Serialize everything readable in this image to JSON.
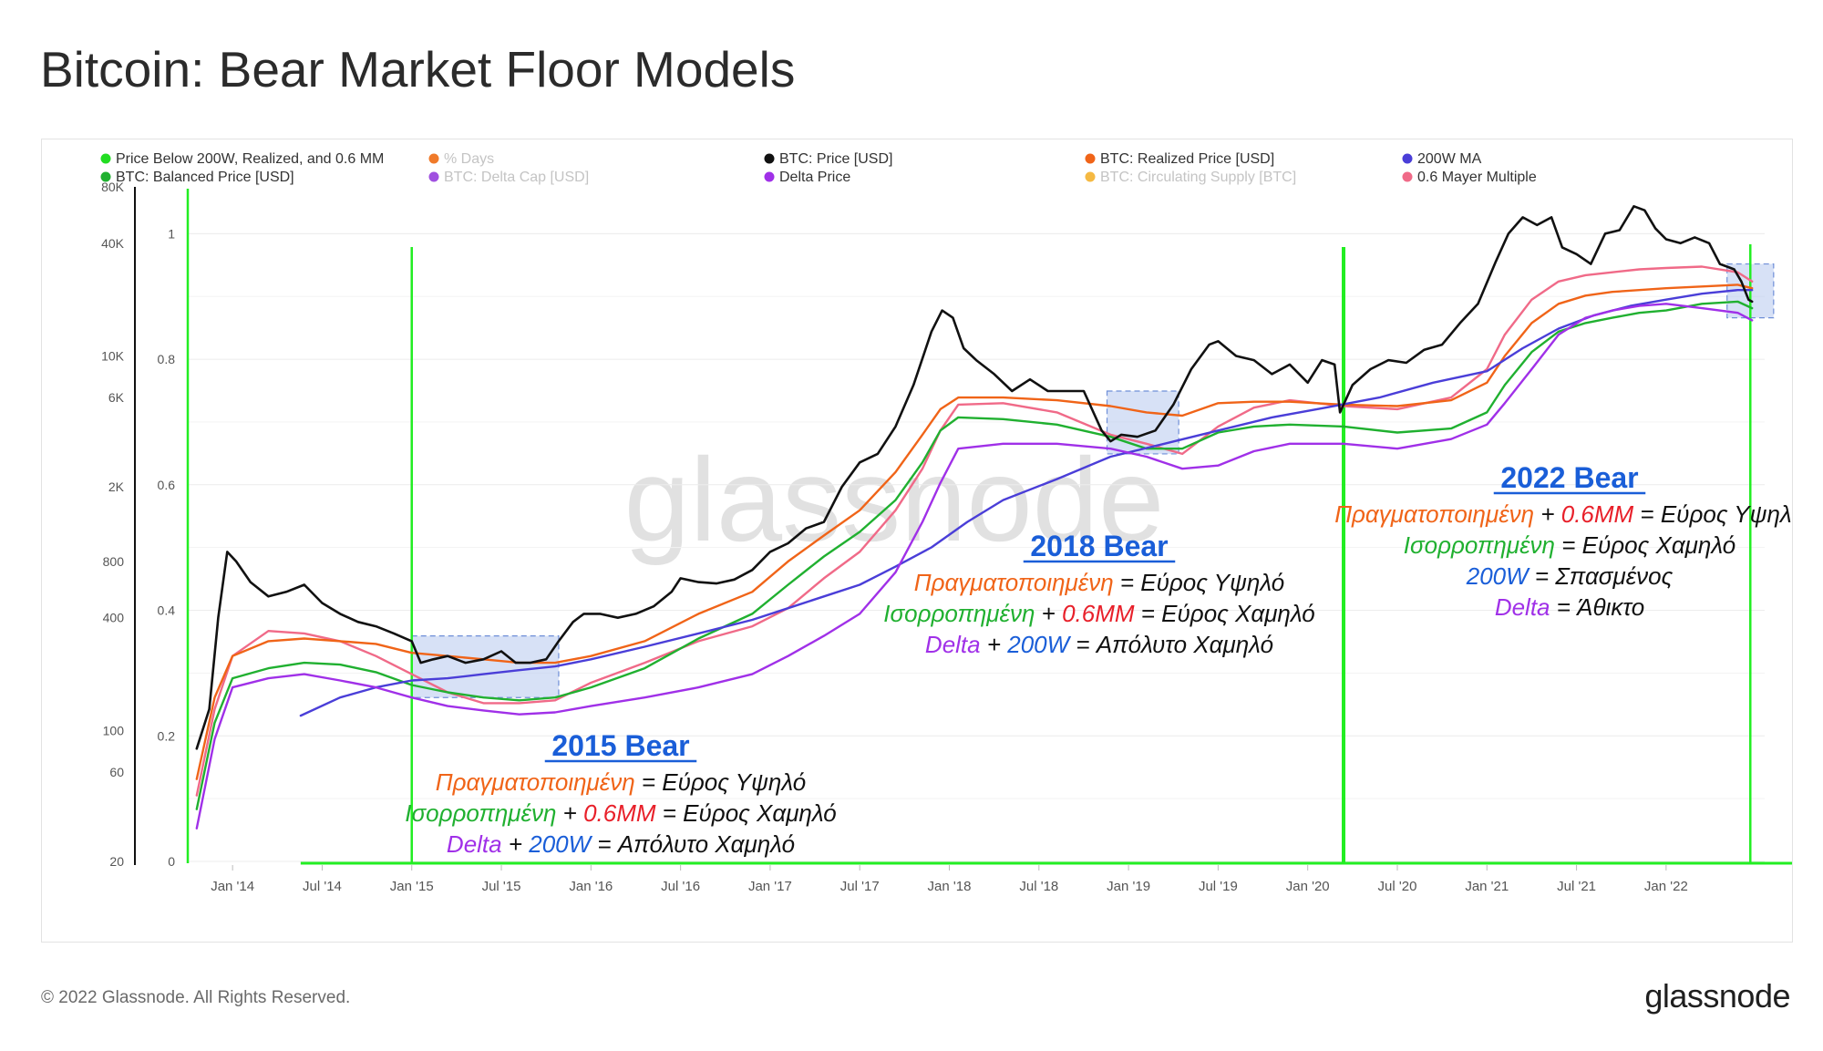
{
  "page": {
    "title": "Bitcoin: Bear Market Floor Models",
    "copyright": "© 2022 Glassnode. All Rights Reserved.",
    "brand": "glassnode",
    "watermark": "glassnode"
  },
  "chart_data": {
    "type": "line",
    "title": "Bitcoin: Bear Market Floor Models",
    "y_scale": "log",
    "y_left_ticks": [
      "80K",
      "40K",
      "10K",
      "6K",
      "2K",
      "800",
      "400",
      "100",
      "60",
      "20"
    ],
    "y_left_values": [
      80000,
      40000,
      10000,
      6000,
      2000,
      800,
      400,
      100,
      60,
      20
    ],
    "y_inner_ticks": [
      "1",
      "0.8",
      "0.6",
      "0.4",
      "0.2",
      "0"
    ],
    "y_inner_values": [
      1,
      0.8,
      0.6,
      0.4,
      0.2,
      0
    ],
    "x_ticks": [
      "Jan '14",
      "Jul '14",
      "Jan '15",
      "Jul '15",
      "Jan '16",
      "Jul '16",
      "Jan '17",
      "Jul '17",
      "Jan '18",
      "Jul '18",
      "Jan '19",
      "Jul '19",
      "Jan '20",
      "Jul '20",
      "Jan '21",
      "Jul '21",
      "Jan '22"
    ],
    "x_tick_values": [
      2014.0,
      2014.5,
      2015.0,
      2015.5,
      2016.0,
      2016.5,
      2017.0,
      2017.5,
      2018.0,
      2018.5,
      2019.0,
      2019.5,
      2020.0,
      2020.5,
      2021.0,
      2021.5,
      2022.0
    ],
    "x_range": [
      2013.75,
      2022.55
    ],
    "legend": [
      {
        "label": "Price Below 200W, Realized, and 0.6 MM",
        "color": "#22dd22",
        "muted": false
      },
      {
        "label": "% Days",
        "color": "#f07a2a",
        "muted": true
      },
      {
        "label": "BTC: Price [USD]",
        "color": "#111111",
        "muted": false
      },
      {
        "label": "BTC: Realized Price [USD]",
        "color": "#f06418",
        "muted": false
      },
      {
        "label": "200W MA",
        "color": "#4a3ed8",
        "muted": false
      },
      {
        "label": "BTC: Balanced Price [USD]",
        "color": "#20b030",
        "muted": false
      },
      {
        "label": "BTC: Delta Cap [USD]",
        "color": "#a050e0",
        "muted": true
      },
      {
        "label": "Delta Price",
        "color": "#a030e8",
        "muted": false
      },
      {
        "label": "BTC: Circulating Supply [BTC]",
        "color": "#f5b942",
        "muted": true
      },
      {
        "label": "0.6 Mayer Multiple",
        "color": "#f06a88",
        "muted": false
      }
    ],
    "series": [
      {
        "name": "BTC: Price [USD]",
        "color": "#111111",
        "x": [
          2013.8,
          2013.87,
          2013.92,
          2013.97,
          2014.02,
          2014.1,
          2014.2,
          2014.3,
          2014.4,
          2014.5,
          2014.6,
          2014.7,
          2014.8,
          2014.9,
          2015.0,
          2015.05,
          2015.12,
          2015.2,
          2015.3,
          2015.4,
          2015.5,
          2015.58,
          2015.66,
          2015.75,
          2015.82,
          2015.9,
          2015.96,
          2016.05,
          2016.15,
          2016.25,
          2016.35,
          2016.45,
          2016.5,
          2016.6,
          2016.7,
          2016.8,
          2016.9,
          2017.0,
          2017.1,
          2017.2,
          2017.3,
          2017.4,
          2017.5,
          2017.6,
          2017.7,
          2017.8,
          2017.9,
          2017.96,
          2018.02,
          2018.08,
          2018.15,
          2018.25,
          2018.35,
          2018.45,
          2018.55,
          2018.65,
          2018.75,
          2018.85,
          2018.9,
          2018.96,
          2019.05,
          2019.15,
          2019.25,
          2019.35,
          2019.45,
          2019.5,
          2019.6,
          2019.7,
          2019.8,
          2019.9,
          2020.0,
          2020.08,
          2020.15,
          2020.18,
          2020.25,
          2020.35,
          2020.45,
          2020.55,
          2020.65,
          2020.75,
          2020.85,
          2020.95,
          2021.05,
          2021.12,
          2021.2,
          2021.28,
          2021.36,
          2021.42,
          2021.5,
          2021.58,
          2021.66,
          2021.74,
          2021.82,
          2021.88,
          2021.94,
          2022.0,
          2022.08,
          2022.16,
          2022.24,
          2022.3,
          2022.34,
          2022.38,
          2022.42,
          2022.46,
          2022.48
        ],
        "y": [
          80,
          130,
          400,
          900,
          800,
          620,
          520,
          550,
          600,
          480,
          420,
          380,
          360,
          330,
          300,
          230,
          240,
          250,
          230,
          240,
          265,
          230,
          230,
          240,
          300,
          380,
          420,
          420,
          400,
          420,
          460,
          550,
          650,
          620,
          610,
          640,
          720,
          900,
          1000,
          1200,
          1300,
          2000,
          2700,
          3000,
          4200,
          7000,
          13500,
          17500,
          16000,
          11000,
          9500,
          8000,
          6500,
          7500,
          6500,
          6500,
          6500,
          4000,
          3500,
          3800,
          3700,
          4000,
          5500,
          8500,
          11500,
          12000,
          10000,
          9500,
          8000,
          9000,
          7200,
          9500,
          9000,
          5000,
          7000,
          8500,
          9500,
          9200,
          10800,
          11500,
          15000,
          19000,
          32000,
          45000,
          55000,
          50000,
          55000,
          38000,
          35000,
          31000,
          45000,
          47000,
          63000,
          60000,
          48000,
          42000,
          40000,
          43000,
          40000,
          31000,
          30000,
          29000,
          25000,
          20000,
          19500
        ]
      },
      {
        "name": "BTC: Realized Price [USD]",
        "color": "#f06418",
        "x": [
          2013.8,
          2013.9,
          2014.0,
          2014.2,
          2014.4,
          2014.6,
          2014.8,
          2015.0,
          2015.2,
          2015.4,
          2015.6,
          2015.8,
          2016.0,
          2016.3,
          2016.6,
          2016.9,
          2017.1,
          2017.3,
          2017.5,
          2017.7,
          2017.85,
          2017.95,
          2018.05,
          2018.3,
          2018.6,
          2018.9,
          2019.1,
          2019.3,
          2019.5,
          2019.7,
          2019.9,
          2020.2,
          2020.5,
          2020.8,
          2021.0,
          2021.1,
          2021.25,
          2021.4,
          2021.55,
          2021.7,
          2021.85,
          2022.0,
          2022.2,
          2022.4,
          2022.48
        ],
        "y": [
          55,
          150,
          250,
          300,
          310,
          300,
          290,
          260,
          250,
          240,
          230,
          230,
          250,
          300,
          420,
          550,
          800,
          1100,
          1500,
          2400,
          3800,
          5200,
          6000,
          6000,
          5800,
          5400,
          5000,
          4800,
          5600,
          5700,
          5700,
          5500,
          5400,
          5800,
          7200,
          10000,
          15000,
          19000,
          21000,
          22000,
          22500,
          23000,
          23500,
          24000,
          23000
        ]
      },
      {
        "name": "BTC: Balanced Price [USD]",
        "color": "#20b030",
        "x": [
          2013.8,
          2013.9,
          2014.0,
          2014.2,
          2014.4,
          2014.6,
          2014.8,
          2015.0,
          2015.2,
          2015.4,
          2015.6,
          2015.8,
          2016.0,
          2016.3,
          2016.6,
          2016.9,
          2017.1,
          2017.3,
          2017.5,
          2017.7,
          2017.85,
          2017.95,
          2018.05,
          2018.3,
          2018.6,
          2018.9,
          2019.1,
          2019.3,
          2019.5,
          2019.7,
          2019.9,
          2020.2,
          2020.5,
          2020.8,
          2021.0,
          2021.1,
          2021.25,
          2021.4,
          2021.55,
          2021.7,
          2021.85,
          2022.0,
          2022.2,
          2022.4,
          2022.48
        ],
        "y": [
          38,
          110,
          190,
          215,
          230,
          225,
          205,
          175,
          160,
          150,
          145,
          150,
          170,
          215,
          310,
          420,
          600,
          850,
          1150,
          1700,
          2700,
          4000,
          4700,
          4600,
          4300,
          3700,
          3200,
          3200,
          3900,
          4200,
          4300,
          4200,
          3900,
          4100,
          5000,
          7000,
          10500,
          13500,
          15000,
          16000,
          17000,
          17500,
          19000,
          19500,
          18000
        ]
      },
      {
        "name": "200W MA",
        "color": "#4a3ed8",
        "x": [
          2014.38,
          2014.6,
          2014.8,
          2015.0,
          2015.2,
          2015.4,
          2015.6,
          2015.8,
          2016.0,
          2016.3,
          2016.6,
          2016.9,
          2017.1,
          2017.3,
          2017.5,
          2017.7,
          2017.9,
          2018.1,
          2018.3,
          2018.6,
          2018.9,
          2019.2,
          2019.5,
          2019.8,
          2020.1,
          2020.4,
          2020.7,
          2021.0,
          2021.2,
          2021.4,
          2021.6,
          2021.8,
          2022.0,
          2022.2,
          2022.4,
          2022.48
        ],
        "y": [
          120,
          150,
          170,
          185,
          190,
          200,
          210,
          220,
          240,
          280,
          330,
          390,
          450,
          520,
          600,
          750,
          950,
          1300,
          1700,
          2200,
          2900,
          3400,
          4000,
          4700,
          5300,
          6000,
          7200,
          8300,
          11000,
          14000,
          16500,
          18500,
          20000,
          21500,
          22500,
          22500
        ]
      },
      {
        "name": "Delta Price",
        "color": "#a030e8",
        "x": [
          2013.8,
          2013.9,
          2014.0,
          2014.2,
          2014.4,
          2014.6,
          2014.8,
          2015.0,
          2015.2,
          2015.4,
          2015.6,
          2015.8,
          2016.0,
          2016.3,
          2016.6,
          2016.9,
          2017.1,
          2017.3,
          2017.5,
          2017.7,
          2017.85,
          2017.95,
          2018.05,
          2018.3,
          2018.6,
          2018.9,
          2019.1,
          2019.3,
          2019.5,
          2019.7,
          2019.9,
          2020.2,
          2020.5,
          2020.8,
          2021.0,
          2021.1,
          2021.25,
          2021.4,
          2021.55,
          2021.7,
          2021.85,
          2022.0,
          2022.2,
          2022.4,
          2022.48
        ],
        "y": [
          30,
          90,
          170,
          190,
          200,
          185,
          170,
          150,
          135,
          128,
          122,
          125,
          135,
          150,
          170,
          200,
          250,
          320,
          420,
          700,
          1300,
          2100,
          3200,
          3400,
          3400,
          3200,
          2900,
          2500,
          2600,
          3100,
          3400,
          3400,
          3200,
          3600,
          4300,
          5600,
          8500,
          13000,
          16000,
          17500,
          18500,
          19000,
          18000,
          17000,
          15500
        ]
      },
      {
        "name": "0.6 Mayer Multiple",
        "color": "#f06a88",
        "x": [
          2013.8,
          2013.9,
          2014.0,
          2014.2,
          2014.4,
          2014.6,
          2014.8,
          2015.0,
          2015.2,
          2015.4,
          2015.6,
          2015.8,
          2016.0,
          2016.3,
          2016.6,
          2016.9,
          2017.1,
          2017.3,
          2017.5,
          2017.7,
          2017.85,
          2017.95,
          2018.05,
          2018.3,
          2018.6,
          2018.9,
          2019.1,
          2019.3,
          2019.5,
          2019.7,
          2019.9,
          2020.2,
          2020.5,
          2020.8,
          2021.0,
          2021.1,
          2021.25,
          2021.4,
          2021.55,
          2021.7,
          2021.85,
          2022.0,
          2022.2,
          2022.4,
          2022.48
        ],
        "y": [
          45,
          130,
          250,
          340,
          330,
          300,
          250,
          200,
          160,
          140,
          140,
          145,
          180,
          230,
          300,
          360,
          450,
          650,
          900,
          1500,
          2500,
          4000,
          5500,
          5600,
          5000,
          3800,
          3400,
          3000,
          4200,
          5300,
          5800,
          5400,
          5200,
          6000,
          8500,
          13000,
          20000,
          25000,
          27000,
          28000,
          29000,
          29500,
          30000,
          28000,
          25000
        ]
      }
    ],
    "signal_markers": [
      2013.75,
      2015.0,
      2020.2,
      2022.47
    ],
    "bear_zones": [
      {
        "x0": 2015.0,
        "x1": 2015.82,
        "y0": 150,
        "y1": 320
      },
      {
        "x0": 2018.88,
        "x1": 2019.28,
        "y0": 3000,
        "y1": 6500
      },
      {
        "x0": 2022.34,
        "x1": 2022.6,
        "y0": 16000,
        "y1": 31000
      }
    ],
    "annotations": [
      {
        "title": "2015 Bear",
        "lines": [
          [
            {
              "t": "Πραγματοποιημένη",
              "c": "#f06418"
            },
            {
              "t": " = Εύρος Υψηλό",
              "c": "#111111"
            }
          ],
          [
            {
              "t": "Ισορροπημένη",
              "c": "#20b030"
            },
            {
              "t": " + ",
              "c": "#111111"
            },
            {
              "t": "0.6MM",
              "c": "#e8202a"
            },
            {
              "t": " = Εύρος Χαμηλό",
              "c": "#111111"
            }
          ],
          [
            {
              "t": "Delta",
              "c": "#a030e8"
            },
            {
              "t": " + ",
              "c": "#111111"
            },
            {
              "t": "200W",
              "c": "#1a5ed8"
            },
            {
              "t": " = Απόλυτο Χαμηλό",
              "c": "#111111"
            }
          ]
        ]
      },
      {
        "title": "2018 Bear",
        "lines": [
          [
            {
              "t": "Πραγματοποιημένη",
              "c": "#f06418"
            },
            {
              "t": " = Εύρος Υψηλό",
              "c": "#111111"
            }
          ],
          [
            {
              "t": "Ισορροπημένη",
              "c": "#20b030"
            },
            {
              "t": " + ",
              "c": "#111111"
            },
            {
              "t": "0.6MM",
              "c": "#e8202a"
            },
            {
              "t": " = Εύρος Χαμηλό",
              "c": "#111111"
            }
          ],
          [
            {
              "t": "Delta",
              "c": "#a030e8"
            },
            {
              "t": " + ",
              "c": "#111111"
            },
            {
              "t": "200W",
              "c": "#1a5ed8"
            },
            {
              "t": " = Απόλυτο Χαμηλό",
              "c": "#111111"
            }
          ]
        ]
      },
      {
        "title": "2022 Bear",
        "lines": [
          [
            {
              "t": "Πραγματοποιημένη",
              "c": "#f06418"
            },
            {
              "t": " + ",
              "c": "#111111"
            },
            {
              "t": "0.6MM",
              "c": "#e8202a"
            },
            {
              "t": " = Εύρος Υψηλό",
              "c": "#111111"
            }
          ],
          [
            {
              "t": "Ισορροπημένη",
              "c": "#20b030"
            },
            {
              "t": " = Εύρος Χαμηλό",
              "c": "#111111"
            }
          ],
          [
            {
              "t": "200W",
              "c": "#1a5ed8"
            },
            {
              "t": " = Σπασμένος",
              "c": "#111111"
            }
          ],
          [
            {
              "t": "Delta",
              "c": "#a030e8"
            },
            {
              "t": " = Άθικτο",
              "c": "#111111"
            }
          ]
        ]
      }
    ]
  }
}
